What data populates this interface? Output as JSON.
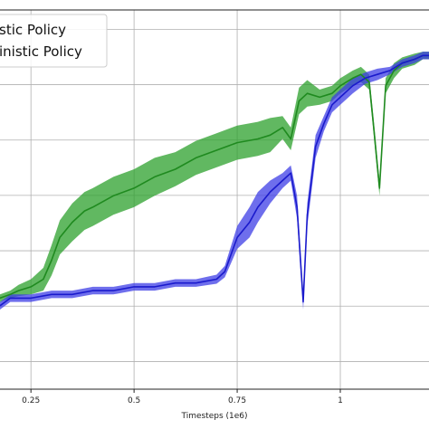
{
  "chart_data": {
    "type": "line",
    "xlabel": "Timesteps (1e6)",
    "ylabel": "",
    "title": "",
    "xlim": [
      0.175,
      1.215
    ],
    "ylim": [
      0,
      1
    ],
    "grid": true,
    "legend_position": "top-left",
    "x_ticks": [
      {
        "value": 0.25,
        "label": "0.25"
      },
      {
        "value": 0.5,
        "label": "0.5"
      },
      {
        "value": 0.75,
        "label": "0.75"
      },
      {
        "value": 1.0,
        "label": "1"
      }
    ],
    "y_grid": [
      0.073,
      0.219,
      0.365,
      0.511,
      0.657,
      0.803,
      0.949
    ],
    "series": [
      {
        "name": "Stochastic Policy",
        "legend_label": "stic Policy",
        "color": "#1f8a1f",
        "band_color": "#2ca02c",
        "x": [
          0.175,
          0.2,
          0.22,
          0.25,
          0.28,
          0.3,
          0.32,
          0.35,
          0.38,
          0.4,
          0.45,
          0.5,
          0.55,
          0.6,
          0.65,
          0.7,
          0.75,
          0.8,
          0.83,
          0.86,
          0.88,
          0.9,
          0.92,
          0.95,
          0.98,
          1.0,
          1.03,
          1.05,
          1.07,
          1.08,
          1.095,
          1.11,
          1.13,
          1.15,
          1.18,
          1.2,
          1.215
        ],
        "y": [
          0.24,
          0.25,
          0.26,
          0.27,
          0.29,
          0.34,
          0.4,
          0.44,
          0.47,
          0.48,
          0.51,
          0.53,
          0.56,
          0.58,
          0.61,
          0.63,
          0.65,
          0.66,
          0.67,
          0.69,
          0.66,
          0.76,
          0.78,
          0.77,
          0.78,
          0.8,
          0.82,
          0.83,
          0.81,
          0.7,
          0.53,
          0.8,
          0.84,
          0.86,
          0.87,
          0.88,
          0.88
        ],
        "spread": [
          0.01,
          0.01,
          0.015,
          0.02,
          0.03,
          0.04,
          0.045,
          0.05,
          0.05,
          0.05,
          0.05,
          0.05,
          0.05,
          0.045,
          0.045,
          0.045,
          0.045,
          0.045,
          0.045,
          0.03,
          0.03,
          0.035,
          0.035,
          0.02,
          0.02,
          0.02,
          0.02,
          0.02,
          0.02,
          0.02,
          0.02,
          0.02,
          0.02,
          0.015,
          0.015,
          0.01,
          0.01
        ]
      },
      {
        "name": "Deterministic Policy",
        "legend_label": "inistic Policy",
        "color": "#1a1acc",
        "band_color": "#3d3de6",
        "x": [
          0.175,
          0.2,
          0.25,
          0.3,
          0.35,
          0.4,
          0.45,
          0.5,
          0.55,
          0.6,
          0.65,
          0.7,
          0.72,
          0.75,
          0.78,
          0.8,
          0.83,
          0.86,
          0.88,
          0.895,
          0.91,
          0.92,
          0.94,
          0.96,
          0.98,
          1.0,
          1.03,
          1.06,
          1.09,
          1.12,
          1.15,
          1.18,
          1.2,
          1.215
        ],
        "y": [
          0.22,
          0.24,
          0.24,
          0.25,
          0.25,
          0.26,
          0.26,
          0.27,
          0.27,
          0.28,
          0.28,
          0.29,
          0.31,
          0.4,
          0.44,
          0.48,
          0.52,
          0.55,
          0.57,
          0.48,
          0.23,
          0.46,
          0.64,
          0.7,
          0.75,
          0.77,
          0.8,
          0.82,
          0.83,
          0.84,
          0.86,
          0.87,
          0.88,
          0.88
        ],
        "spread": [
          0.01,
          0.01,
          0.01,
          0.01,
          0.01,
          0.01,
          0.01,
          0.01,
          0.01,
          0.01,
          0.01,
          0.012,
          0.015,
          0.03,
          0.04,
          0.04,
          0.03,
          0.02,
          0.02,
          0.03,
          0.02,
          0.03,
          0.03,
          0.02,
          0.02,
          0.02,
          0.02,
          0.015,
          0.015,
          0.01,
          0.01,
          0.01,
          0.01,
          0.01
        ]
      }
    ]
  }
}
